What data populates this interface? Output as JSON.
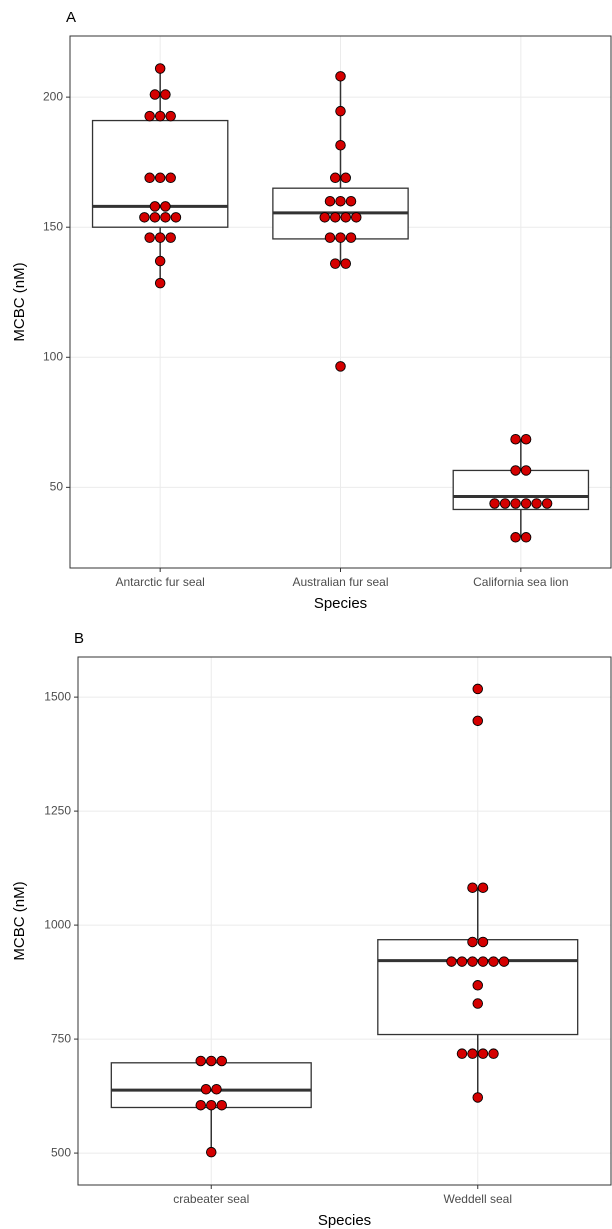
{
  "chart_data": [
    {
      "type": "box",
      "title": "A",
      "x_label": "Species",
      "y_label": "MCBC (nM)",
      "categories": [
        "Antarctic fur seal",
        "Australian fur seal",
        "California sea lion"
      ],
      "boxes": [
        {
          "min": 128.5,
          "q1": 150,
          "median": 158,
          "q3": 191,
          "max": 211
        },
        {
          "min": 136,
          "q1": 145.5,
          "median": 155.5,
          "q3": 165,
          "max": 208
        },
        {
          "min": 30.8,
          "q1": 41.5,
          "median": 46.5,
          "q3": 56.5,
          "max": 68.5
        }
      ],
      "points": [
        [
          211,
          201,
          201,
          192.7,
          192.7,
          192.7,
          169,
          169,
          169,
          158,
          158,
          153.8,
          153.8,
          153.8,
          153.8,
          146,
          146,
          146,
          137,
          128.5
        ],
        [
          208,
          194.6,
          181.5,
          169,
          169,
          160,
          160,
          160,
          153.8,
          153.8,
          153.8,
          153.8,
          146,
          146,
          146,
          136,
          136,
          96.5
        ],
        [
          68.5,
          68.5,
          56.5,
          56.5,
          43.8,
          43.8,
          43.8,
          43.8,
          43.8,
          43.8,
          30.8,
          30.8
        ]
      ],
      "point_color": "#d40000",
      "ylim": [
        19,
        223.5
      ],
      "yticks": [
        50,
        100,
        150,
        200
      ],
      "grid": true
    },
    {
      "type": "box",
      "title": "B",
      "x_label": "Species",
      "y_label": "MCBC (nM)",
      "categories": [
        "crabeater seal",
        "Weddell seal"
      ],
      "boxes": [
        {
          "min": 502,
          "q1": 600,
          "median": 638,
          "q3": 698,
          "max": 702
        },
        {
          "min": 622,
          "q1": 760,
          "median": 922,
          "q3": 968,
          "max": 1082
        }
      ],
      "points": [
        [
          702,
          702,
          702,
          640,
          640,
          605,
          605,
          605,
          502
        ],
        [
          1518,
          1448,
          1082,
          1082,
          963,
          963,
          920,
          920,
          920,
          920,
          920,
          920,
          868,
          828,
          718,
          718,
          718,
          718,
          622
        ]
      ],
      "point_color": "#d40000",
      "ylim": [
        430,
        1588
      ],
      "yticks": [
        500,
        750,
        1000,
        1250,
        1500
      ],
      "grid": true
    }
  ]
}
